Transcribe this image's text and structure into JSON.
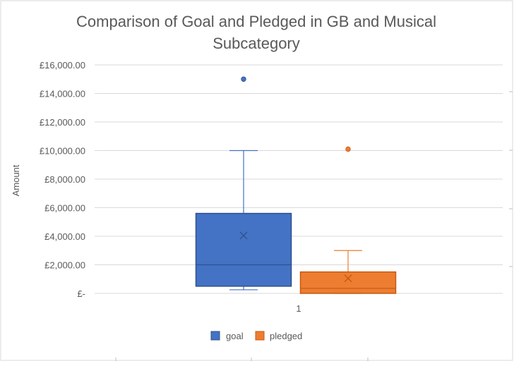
{
  "chart_data": {
    "type": "box",
    "title_line1": "Comparison of Goal and Pledged in GB and Musical",
    "title_line2": "Subcategory",
    "ylabel": "Amount",
    "xlabel": "",
    "categories": [
      "1"
    ],
    "ylim": [
      0,
      16000
    ],
    "y_ticks": [
      0,
      2000,
      4000,
      6000,
      8000,
      10000,
      12000,
      14000,
      16000
    ],
    "y_tick_labels": [
      "£-",
      "£2,000.00",
      "£4,000.00",
      "£6,000.00",
      "£8,000.00",
      "£10,000.00",
      "£12,000.00",
      "£14,000.00",
      "£16,000.00"
    ],
    "grid": true,
    "legend_position": "bottom",
    "series": [
      {
        "name": "goal",
        "color": "#4472C4",
        "edge_color": "#2F528F",
        "whisker_low": 250,
        "q1": 500,
        "median": 2000,
        "q3": 5600,
        "whisker_high": 10000,
        "mean": 4050,
        "outliers": [
          15000
        ]
      },
      {
        "name": "pledged",
        "color": "#ED7D31",
        "edge_color": "#C55A11",
        "whisker_low": 0,
        "q1": 0,
        "median": 350,
        "q3": 1500,
        "whisker_high": 3000,
        "mean": 1050,
        "outliers": [
          10100
        ]
      }
    ]
  }
}
